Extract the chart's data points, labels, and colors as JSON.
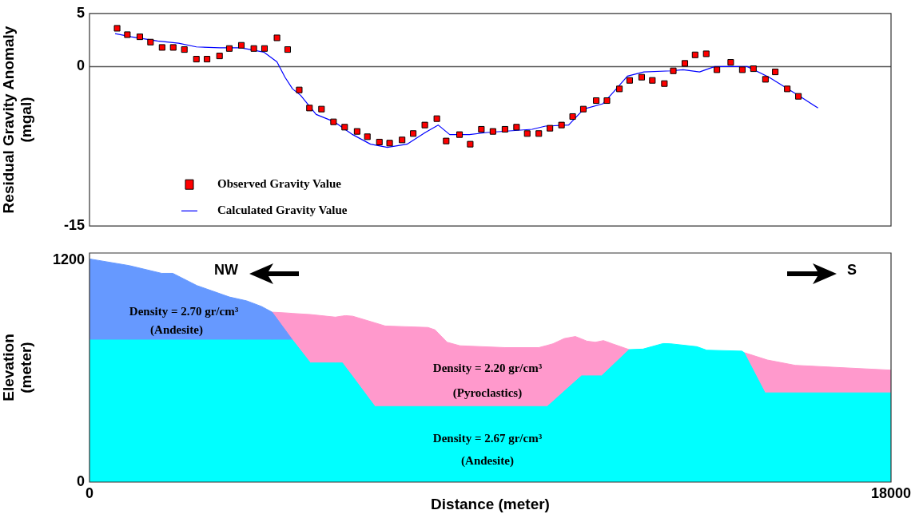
{
  "chart_data": [
    {
      "type": "scatter",
      "ylabel": "Residual Gravity Anomaly\n(mgal)",
      "xlim": [
        0,
        18000
      ],
      "ylim": [
        -15,
        5
      ],
      "yticks": [
        5,
        0,
        -15
      ],
      "tick_labels": "y",
      "legend": "bottom left",
      "ref_lines": [
        {
          "axis": "y",
          "value": 0,
          "color": "#555555"
        }
      ],
      "series": [
        {
          "name": "Observed Gravity Value",
          "type": "scatter",
          "color": "#ff0000",
          "marker": "square",
          "x": [
            620,
            850,
            1130,
            1370,
            1630,
            1880,
            2130,
            2400,
            2640,
            2920,
            3140,
            3410,
            3690,
            3930,
            4210,
            4450,
            4710,
            4940,
            5210,
            5480,
            5730,
            6010,
            6240,
            6510,
            6740,
            7020,
            7270,
            7530,
            7800,
            8010,
            8310,
            8550,
            8800,
            9060,
            9330,
            9590,
            9830,
            10090,
            10340,
            10600,
            10850,
            11090,
            11380,
            11620,
            11900,
            12130,
            12400,
            12640,
            12910,
            13110,
            13370,
            13600,
            13850,
            14090,
            14400,
            14660,
            14910,
            15180,
            15400,
            15670,
            15920
          ],
          "values": [
            3.6,
            3.0,
            2.8,
            2.3,
            1.8,
            1.8,
            1.6,
            0.7,
            0.7,
            1.0,
            1.7,
            2.0,
            1.7,
            1.7,
            2.7,
            1.6,
            -2.2,
            -3.9,
            -4.0,
            -5.2,
            -5.7,
            -6.1,
            -6.6,
            -7.1,
            -7.2,
            -6.9,
            -6.3,
            -5.5,
            -4.9,
            -7.0,
            -6.4,
            -7.3,
            -5.9,
            -6.1,
            -5.9,
            -5.7,
            -6.3,
            -6.3,
            -5.8,
            -5.5,
            -4.7,
            -4.0,
            -3.2,
            -3.2,
            -2.1,
            -1.3,
            -1.0,
            -1.3,
            -1.6,
            -0.4,
            0.3,
            1.1,
            1.2,
            -0.3,
            0.4,
            -0.3,
            -0.2,
            -1.2,
            -0.5,
            -2.1,
            -2.8
          ]
        },
        {
          "name": "Calculated Gravity Value",
          "type": "line",
          "color": "#0000ff",
          "marker": "none",
          "x": [
            575,
            940,
            1530,
            2000,
            2400,
            2930,
            3400,
            3920,
            4210,
            4390,
            4560,
            4740,
            5090,
            5500,
            5910,
            6310,
            6690,
            7130,
            7540,
            7830,
            8090,
            8530,
            8930,
            9940,
            10240,
            10760,
            11100,
            11530,
            11830,
            12080,
            12450,
            13060,
            13330,
            13700,
            14040,
            14770,
            15260,
            15990,
            16360
          ],
          "values": [
            3.1,
            2.8,
            2.4,
            2.2,
            1.85,
            1.76,
            1.76,
            1.35,
            0.45,
            -1.0,
            -2.1,
            -2.7,
            -4.5,
            -5.2,
            -6.4,
            -7.3,
            -7.6,
            -7.3,
            -6.2,
            -5.5,
            -6.4,
            -6.4,
            -6.2,
            -5.9,
            -5.6,
            -5.5,
            -4.0,
            -3.5,
            -2.1,
            -0.9,
            -0.5,
            -0.4,
            -0.3,
            -0.5,
            0.0,
            0.0,
            -1.0,
            -2.9,
            -3.9
          ]
        }
      ]
    },
    {
      "type": "area",
      "xlabel": "Distance (meter)",
      "ylabel": "Elevation\n(meter)",
      "xlim": [
        0,
        18000
      ],
      "xticks": [
        0,
        18000
      ],
      "ylim": [
        0,
        1240
      ],
      "yticks": [
        0,
        1200
      ],
      "x": [
        0,
        890,
        1620,
        1870,
        2410,
        3140,
        3530,
        3860,
        4100,
        4460,
        4560,
        4960,
        5520,
        5680,
        5750,
        5910,
        6410,
        6640,
        7600,
        7760,
        8030,
        8320,
        9330,
        10090,
        10280,
        10410,
        10660,
        10910,
        11050,
        11170,
        11360,
        11500,
        11540,
        11740,
        12120,
        12430,
        12880,
        13040,
        13640,
        13860,
        14650,
        14700,
        15170,
        15220,
        15850,
        18000
      ],
      "series": [
        {
          "color": "#00ffff",
          "values": [
            769,
            769,
            769,
            769,
            769,
            769,
            769,
            769,
            769,
            769,
            769,
            645,
            645,
            645,
            622,
            571,
            409,
            409,
            409,
            409,
            409,
            409,
            409,
            409,
            409,
            437,
            491,
            545,
            575,
            575,
            575,
            575,
            584,
            630,
            717,
            720,
            750,
            749,
            733,
            714,
            709,
            701,
            483,
            483,
            483,
            483
          ]
        },
        {
          "color": "#6699ff",
          "values": [
            1208,
            1172,
            1130,
            1130,
            1064,
            1002,
            981,
            951,
            920,
            802,
            769,
            null,
            null,
            null,
            null,
            null,
            null,
            null,
            null,
            null,
            null,
            null,
            null,
            null,
            null,
            null,
            null,
            null,
            null,
            null,
            null,
            null,
            null,
            null,
            null,
            null,
            null,
            null,
            null,
            null,
            null,
            null,
            null,
            null,
            null,
            null
          ]
        },
        {
          "color": "#ff99cc",
          "values": [
            null,
            null,
            null,
            null,
            null,
            null,
            null,
            null,
            920,
            915,
            913,
            907,
            893,
            899,
            901,
            898,
            862,
            845,
            837,
            824,
            757,
            738,
            728,
            728,
            740,
            749,
            777,
            788,
            775,
            763,
            757,
            764,
            766,
            749,
            717,
            null,
            null,
            null,
            null,
            null,
            null,
            701,
            665,
            661,
            632,
            606
          ]
        }
      ],
      "annotations": [
        "NW",
        "S",
        "Density = 2.70 gr/cm³",
        "(Andesite)",
        "Density = 2.20 gr/cm³",
        "(Pyroclastics)",
        "Density = 2.67 gr/cm³",
        "(Andesite)"
      ]
    }
  ]
}
